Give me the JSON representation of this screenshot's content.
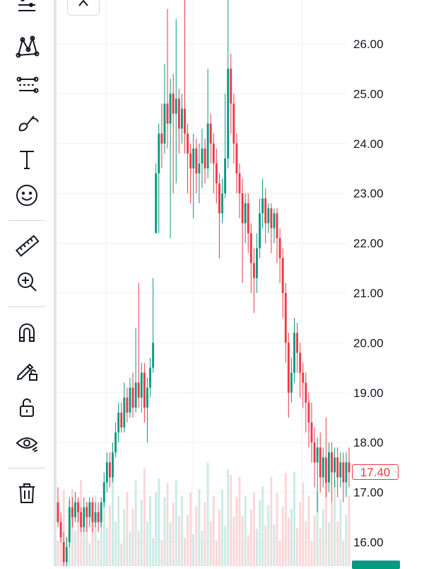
{
  "toolbar": {
    "tools": [
      {
        "name": "lines-tool-icon"
      },
      {
        "name": "pattern-tool-icon"
      },
      {
        "name": "prediction-tool-icon"
      },
      {
        "name": "brush-tool-icon"
      },
      {
        "name": "text-tool-icon"
      },
      {
        "name": "emoji-tool-icon"
      },
      {
        "name": "ruler-icon"
      },
      {
        "name": "zoom-in-icon"
      },
      {
        "name": "magnet-icon"
      },
      {
        "name": "lock-drawings-icon"
      },
      {
        "name": "lock-icon"
      },
      {
        "name": "eye-icon"
      },
      {
        "name": "trash-icon"
      }
    ]
  },
  "collapse_button": {
    "icon": "chevron-up-icon"
  },
  "colors": {
    "up": "#089981",
    "down": "#f23645",
    "grid": "#eef0f3",
    "up_volume": "#c9ebe4",
    "down_volume": "#fbd5d8"
  },
  "chart_data": {
    "type": "candlestick",
    "y_axis": {
      "ticks": [
        "16.00",
        "17.00",
        "18.00",
        "19.00",
        "20.00",
        "21.00",
        "22.00",
        "23.00",
        "24.00",
        "25.00",
        "26.00"
      ],
      "ylim": [
        15.5,
        26.9
      ]
    },
    "last_price": "17.40",
    "candles": [
      [
        16.8,
        16.4,
        17.1,
        16.3
      ],
      [
        16.4,
        16.1,
        16.6,
        16.0
      ],
      [
        16.0,
        15.6,
        16.2,
        15.5
      ],
      [
        15.6,
        15.9,
        16.1,
        15.5
      ],
      [
        16.0,
        16.7,
        16.9,
        15.9
      ],
      [
        16.7,
        16.5,
        16.9,
        16.3
      ],
      [
        16.5,
        16.8,
        17.0,
        16.4
      ],
      [
        16.8,
        16.6,
        16.9,
        16.4
      ],
      [
        16.6,
        16.3,
        16.7,
        16.2
      ],
      [
        16.3,
        16.7,
        16.9,
        16.2
      ],
      [
        16.7,
        16.5,
        16.8,
        16.2
      ],
      [
        16.5,
        16.8,
        16.9,
        16.3
      ],
      [
        16.8,
        16.4,
        16.9,
        16.2
      ],
      [
        16.4,
        16.6,
        16.8,
        16.3
      ],
      [
        16.6,
        16.4,
        16.8,
        16.2
      ],
      [
        16.4,
        16.8,
        16.9,
        16.3
      ],
      [
        16.8,
        17.2,
        17.4,
        16.7
      ],
      [
        17.2,
        17.6,
        17.8,
        17.0
      ],
      [
        17.6,
        17.3,
        17.8,
        17.1
      ],
      [
        17.3,
        17.8,
        18.0,
        17.2
      ],
      [
        17.8,
        18.2,
        18.4,
        17.7
      ],
      [
        18.2,
        18.6,
        18.8,
        18.0
      ],
      [
        18.6,
        18.3,
        18.8,
        18.2
      ],
      [
        18.3,
        18.9,
        19.2,
        18.2
      ],
      [
        18.9,
        18.6,
        19.1,
        18.4
      ],
      [
        18.6,
        19.1,
        19.3,
        18.5
      ],
      [
        19.1,
        18.7,
        19.4,
        18.5
      ],
      [
        18.7,
        19.2,
        20.3,
        18.6
      ],
      [
        19.2,
        18.9,
        21.2,
        18.7
      ],
      [
        18.9,
        19.4,
        19.6,
        18.6
      ],
      [
        19.4,
        18.7,
        19.6,
        18.4
      ],
      [
        18.7,
        19.1,
        19.3,
        18.0
      ],
      [
        19.1,
        19.5,
        19.7,
        18.9
      ],
      [
        19.5,
        20.0,
        21.3,
        19.4
      ],
      [
        22.2,
        23.4,
        23.6,
        22.2
      ],
      [
        23.4,
        24.2,
        24.4,
        22.2
      ],
      [
        24.2,
        24.0,
        24.8,
        23.5
      ],
      [
        24.0,
        24.8,
        25.6,
        23.8
      ],
      [
        24.8,
        24.4,
        26.7,
        23.9
      ],
      [
        24.4,
        25.0,
        25.3,
        22.1
      ],
      [
        25.0,
        24.6,
        25.4,
        23.0
      ],
      [
        24.6,
        24.9,
        26.5,
        23.2
      ],
      [
        24.9,
        24.3,
        25.1,
        23.8
      ],
      [
        24.3,
        24.7,
        25.0,
        24.0
      ],
      [
        24.7,
        24.2,
        26.9,
        23.8
      ],
      [
        24.2,
        23.8,
        24.4,
        23.0
      ],
      [
        23.8,
        23.5,
        24.0,
        22.8
      ],
      [
        23.5,
        23.9,
        24.2,
        22.5
      ],
      [
        23.9,
        23.4,
        24.1,
        23.0
      ],
      [
        23.4,
        23.6,
        24.0,
        22.8
      ],
      [
        23.6,
        23.9,
        24.3,
        23.1
      ],
      [
        23.9,
        23.5,
        24.1,
        23.2
      ],
      [
        23.5,
        24.4,
        25.5,
        23.3
      ],
      [
        24.4,
        24.0,
        24.6,
        23.6
      ],
      [
        24.0,
        23.6,
        24.2,
        23.0
      ],
      [
        23.6,
        23.2,
        23.9,
        22.8
      ],
      [
        23.2,
        22.6,
        23.4,
        21.7
      ],
      [
        22.6,
        23.0,
        23.3,
        22.4
      ],
      [
        23.0,
        23.7,
        25.0,
        22.9
      ],
      [
        23.7,
        25.5,
        26.9,
        23.5
      ],
      [
        25.5,
        24.8,
        25.8,
        24.2
      ],
      [
        24.8,
        24.0,
        25.0,
        23.6
      ],
      [
        24.0,
        23.4,
        24.2,
        23.0
      ],
      [
        23.4,
        23.0,
        23.6,
        22.5
      ],
      [
        23.0,
        22.4,
        23.3,
        21.2
      ],
      [
        22.4,
        22.8,
        23.0,
        22.0
      ],
      [
        22.8,
        22.2,
        23.0,
        21.8
      ],
      [
        22.2,
        21.6,
        22.4,
        21.0
      ],
      [
        21.6,
        21.3,
        21.9,
        20.6
      ],
      [
        21.3,
        21.9,
        22.2,
        21.0
      ],
      [
        21.9,
        22.6,
        22.9,
        21.7
      ],
      [
        22.6,
        22.9,
        23.3,
        22.3
      ],
      [
        22.9,
        22.4,
        23.1,
        22.0
      ],
      [
        22.4,
        22.7,
        22.8,
        22.2
      ],
      [
        22.7,
        22.3,
        22.8,
        21.8
      ],
      [
        22.3,
        22.6,
        22.7,
        22.0
      ],
      [
        22.6,
        22.1,
        22.7,
        21.6
      ],
      [
        22.1,
        21.7,
        22.3,
        21.2
      ],
      [
        21.7,
        21.0,
        21.9,
        20.5
      ],
      [
        21.0,
        20.0,
        21.2,
        19.6
      ],
      [
        20.0,
        19.0,
        20.2,
        18.5
      ],
      [
        19.0,
        19.4,
        19.7,
        18.8
      ],
      [
        19.4,
        20.2,
        20.5,
        19.2
      ],
      [
        20.2,
        19.8,
        20.4,
        19.4
      ],
      [
        19.8,
        19.4,
        20.0,
        18.9
      ],
      [
        19.4,
        19.2,
        19.6,
        18.7
      ],
      [
        19.2,
        18.8,
        19.4,
        18.2
      ],
      [
        18.8,
        18.4,
        19.0,
        17.9
      ],
      [
        18.4,
        18.0,
        18.8,
        17.6
      ],
      [
        18.0,
        17.6,
        18.3,
        17.1
      ],
      [
        17.6,
        17.9,
        18.1,
        16.6
      ],
      [
        17.9,
        17.3,
        18.2,
        17.0
      ],
      [
        17.3,
        17.7,
        17.9,
        17.1
      ],
      [
        17.7,
        17.2,
        18.5,
        16.9
      ],
      [
        17.2,
        17.8,
        18.0,
        17.0
      ],
      [
        17.8,
        17.4,
        18.0,
        16.8
      ],
      [
        17.4,
        17.7,
        17.9,
        17.1
      ],
      [
        17.7,
        17.3,
        17.9,
        16.9
      ],
      [
        17.3,
        17.6,
        17.8,
        17.1
      ],
      [
        17.6,
        17.2,
        17.8,
        16.8
      ],
      [
        17.2,
        17.6,
        17.8,
        16.9
      ],
      [
        17.6,
        17.4,
        17.9,
        17.1
      ]
    ]
  }
}
